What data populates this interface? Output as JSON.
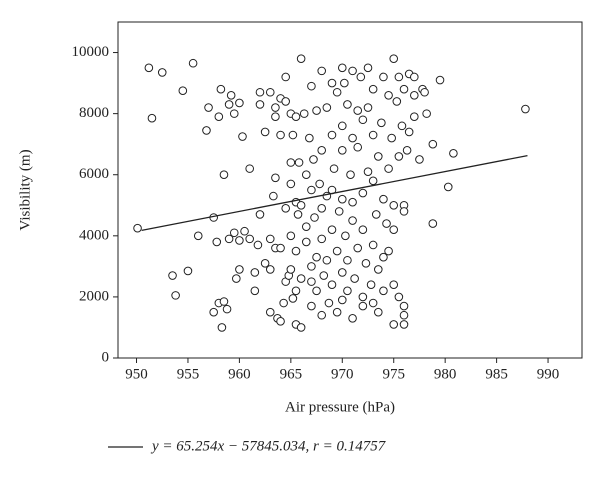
{
  "chart_data": {
    "type": "scatter",
    "xlabel": "Air pressure (hPa)",
    "ylabel": "Visibility (m)",
    "xlim": [
      948.2,
      993.3
    ],
    "ylim": [
      0,
      11000
    ],
    "xticks": [
      950,
      955,
      960,
      965,
      970,
      975,
      980,
      985,
      990
    ],
    "yticks": [
      0,
      2000,
      4000,
      6000,
      8000,
      10000
    ],
    "series": [
      {
        "type": "scatter",
        "color": "#222222",
        "x": [
          950.1,
          951.2,
          951.5,
          952.5,
          953.5,
          953.8,
          954.5,
          955,
          955.5,
          956,
          956.8,
          957,
          957.5,
          957.5,
          957.8,
          958,
          958,
          958.2,
          958.3,
          958.5,
          958.5,
          958.8,
          959,
          959,
          959.2,
          959.5,
          959.5,
          959.7,
          960,
          960,
          960,
          960.3,
          960.5,
          961,
          961.5,
          961,
          961.5,
          961.8,
          962,
          962,
          962,
          962.5,
          962.5,
          963,
          963,
          963,
          963,
          963.3,
          963.5,
          963.5,
          963.5,
          963.5,
          963.7,
          964,
          964,
          964,
          964,
          964.3,
          964.5,
          964.5,
          964.5,
          964.5,
          964.8,
          965,
          965,
          965,
          965,
          965,
          965.2,
          965.2,
          965.5,
          965.5,
          965.5,
          965.5,
          965.5,
          965.7,
          965.8,
          966,
          966,
          966,
          966,
          966.3,
          966.5,
          966.5,
          966.5,
          966.8,
          967,
          967,
          967,
          967,
          967,
          967.2,
          967.3,
          967.5,
          967.5,
          967.5,
          967.8,
          968,
          968,
          968,
          968,
          968,
          968.2,
          968.5,
          968.5,
          968.5,
          968.7,
          969,
          969,
          969,
          969,
          969,
          969.2,
          969.5,
          969.5,
          969.5,
          969.7,
          970,
          970,
          970,
          970,
          970,
          970,
          970.2,
          970.3,
          970.5,
          970.5,
          970.5,
          970.8,
          971,
          971,
          971,
          971,
          971,
          971.2,
          971.5,
          971.5,
          971.5,
          971.8,
          972,
          972,
          972,
          972,
          972,
          972.3,
          972.5,
          972.5,
          972.5,
          972.8,
          973,
          973,
          973,
          973,
          973,
          973.3,
          973.5,
          973.5,
          973.5,
          973.8,
          974,
          974,
          974,
          974,
          974.3,
          974.5,
          974.5,
          974.5,
          974.8,
          975,
          975,
          975,
          975,
          975,
          975.3,
          975.5,
          975.5,
          975.5,
          975.8,
          976,
          976,
          976,
          976,
          976,
          976,
          976.3,
          976.5,
          976.5,
          977,
          977,
          977,
          977.5,
          977.8,
          978,
          978.2,
          978.8,
          978.8,
          979.5,
          980.3,
          980.8,
          987.8
        ],
        "values": [
          4250,
          9500,
          7850,
          9350,
          2700,
          2050,
          8750,
          2850,
          9650,
          4000,
          7450,
          8200,
          4600,
          1500,
          3800,
          1800,
          7900,
          8800,
          1000,
          6000,
          1850,
          1600,
          8300,
          3900,
          8600,
          8000,
          4100,
          2600,
          8350,
          2900,
          3850,
          7250,
          4150,
          3900,
          2800,
          6200,
          2200,
          3700,
          8300,
          8700,
          4700,
          7400,
          3100,
          2900,
          3900,
          1500,
          8700,
          5300,
          5900,
          7900,
          3600,
          8200,
          1300,
          1200,
          8500,
          3600,
          7300,
          1800,
          9200,
          8400,
          2500,
          4900,
          2700,
          6400,
          5700,
          4000,
          8000,
          2900,
          7300,
          1950,
          5100,
          3500,
          2200,
          1100,
          7900,
          4700,
          6400,
          9800,
          1000,
          5000,
          2600,
          8000,
          3800,
          4300,
          6000,
          7200,
          5500,
          3000,
          8900,
          2500,
          1700,
          6500,
          4600,
          3300,
          8100,
          2200,
          5700,
          9400,
          6800,
          4900,
          1400,
          3900,
          2700,
          8200,
          5300,
          3200,
          1800,
          7300,
          5500,
          2400,
          4200,
          9000,
          6200,
          8700,
          3500,
          1500,
          4800,
          9500,
          7600,
          5200,
          2800,
          1900,
          6800,
          9000,
          4000,
          8300,
          3200,
          2200,
          6000,
          9400,
          7200,
          5100,
          1300,
          4500,
          2600,
          8100,
          3600,
          6900,
          9200,
          7800,
          5400,
          2000,
          4200,
          1700,
          3100,
          9500,
          8200,
          6100,
          2400,
          7300,
          5800,
          3700,
          1800,
          8800,
          4700,
          6600,
          2900,
          1500,
          7700,
          9200,
          5200,
          3300,
          2200,
          4400,
          8600,
          6200,
          3500,
          7200,
          9800,
          5000,
          4200,
          2400,
          1100,
          8400,
          6600,
          9200,
          2000,
          7600,
          5000,
          1700,
          1400,
          1100,
          4800,
          8800,
          6800,
          7400,
          9300,
          7900,
          8600,
          9200,
          6500,
          8800,
          8700,
          8000,
          4400,
          7000,
          9100,
          5600,
          6700,
          8150
        ]
      },
      {
        "type": "line",
        "color": "#222222",
        "name": "y = 65.254x − 57845.034, r = 0.14757",
        "x": [
          950.5,
          988
        ],
        "values": [
          4178.9,
          6625.9
        ]
      }
    ]
  }
}
